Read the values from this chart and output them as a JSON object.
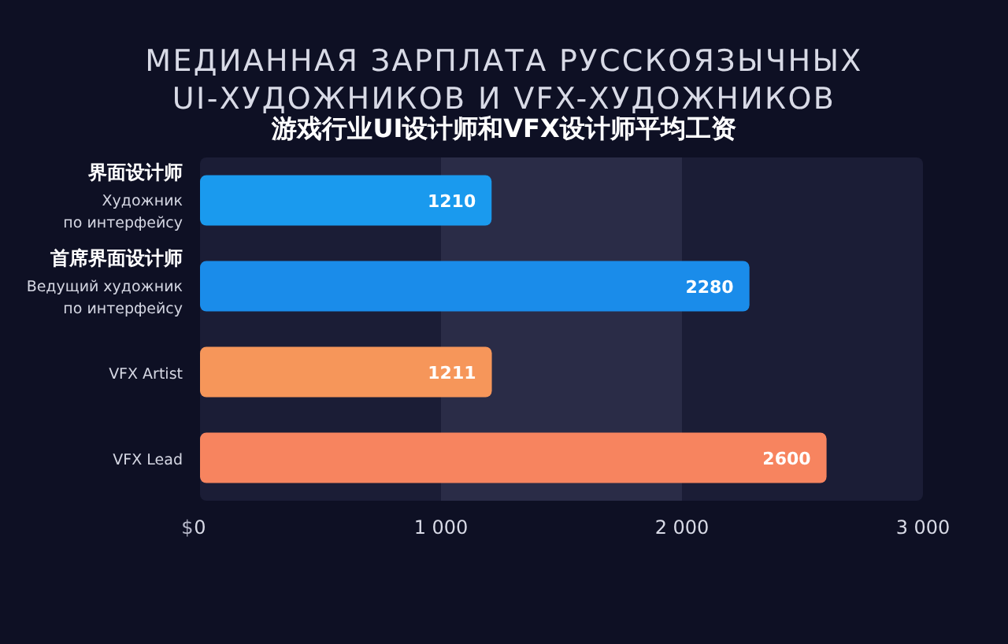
{
  "chart_data": {
    "type": "bar",
    "orientation": "horizontal",
    "title": "МЕДИАННАЯ ЗАРПЛАТА РУССКОЯЗЫЧНЫХ\nUI-ХУДОЖНИКОВ И VFX-ХУДОЖНИКОВ",
    "subtitle": "游戏行业UI设计师和VFX设计师平均工资",
    "categories": [
      "**界面设计师**\nХудожник\nпо интерфейсу",
      "**首席界面设计师**\nВедущий художник\nпо интерфейсу",
      "VFX Artist",
      "VFX Lead"
    ],
    "values": [
      1210,
      2280,
      1211,
      2600
    ],
    "colors": [
      "#1a9aee",
      "#1a8cea",
      "#f6965a",
      "#f7845f"
    ],
    "xlabel": "$",
    "xlim": [
      0,
      3000
    ],
    "xticks": [
      0,
      {
        "value": 1000,
        "label": "1 000"
      },
      {
        "value": 2000,
        "label": "2 000"
      },
      {
        "value": 3000,
        "label": "3 000"
      }
    ],
    "bands": [
      {
        "axis": "x",
        "from": 1000,
        "to": 2000,
        "color": "#2a2c47"
      }
    ],
    "data_labels": true
  }
}
